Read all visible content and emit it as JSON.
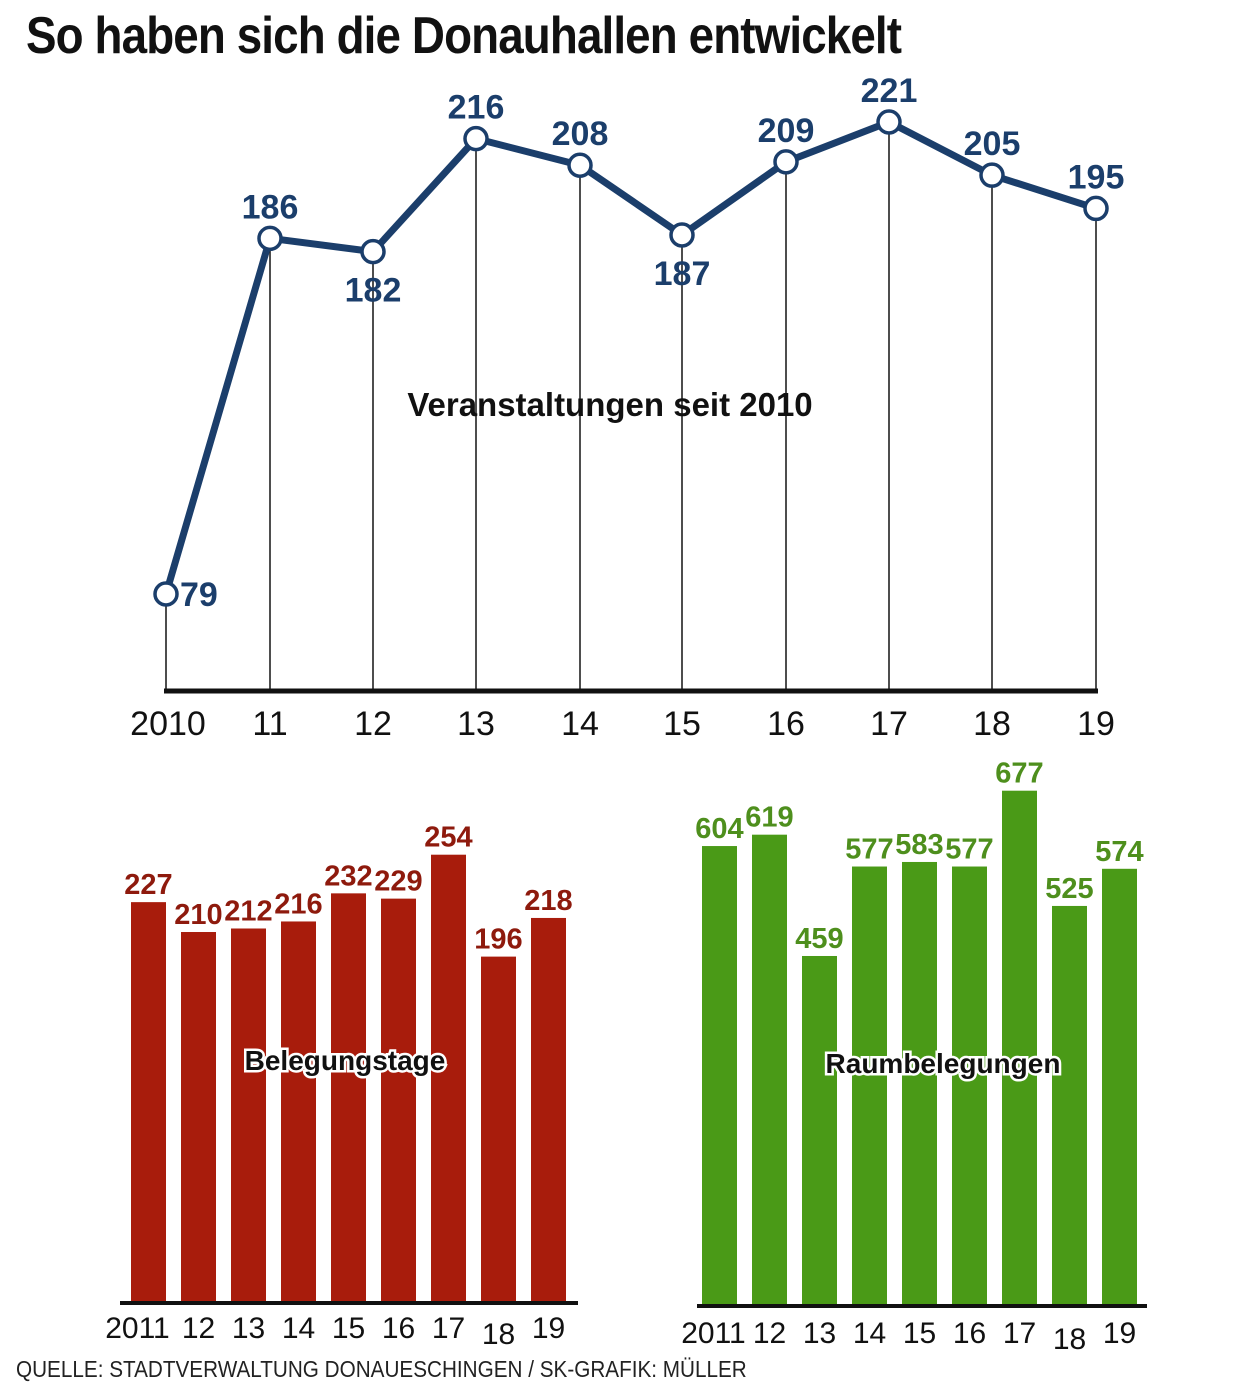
{
  "title": "So haben sich die Donauhallen entwickelt",
  "source": "QUELLE: STADTVERWALTUNG DONAUESCHINGEN / SK-GRAFIK: MÜLLER",
  "colors": {
    "line": "#1b3e6b",
    "bar_red": "#a81c0c",
    "label_red": "#8e1a0d",
    "bar_green": "#4a9a17",
    "label_green": "#4e8f1d",
    "axis": "#111111",
    "gridline": "#222222"
  },
  "chart_data": [
    {
      "type": "line",
      "title": "Veranstaltungen seit 2010",
      "x": [
        "2010",
        "11",
        "12",
        "13",
        "14",
        "15",
        "16",
        "17",
        "18",
        "19"
      ],
      "values": [
        79,
        186,
        182,
        216,
        208,
        187,
        209,
        221,
        205,
        195
      ],
      "data_labels": [
        "79",
        "186",
        "182",
        "216",
        "208",
        "187",
        "209",
        "221",
        "205",
        "195"
      ],
      "grid": "vertical drop lines",
      "legend": "none"
    },
    {
      "type": "bar",
      "title": "Belegungstage",
      "categories": [
        "2011",
        "12",
        "13",
        "14",
        "15",
        "16",
        "17",
        "18",
        "19"
      ],
      "values": [
        227,
        210,
        212,
        216,
        232,
        229,
        254,
        196,
        218
      ],
      "data_labels": [
        "227",
        "210",
        "212",
        "216",
        "232",
        "229",
        "254",
        "196",
        "218"
      ],
      "color": "#a81c0c"
    },
    {
      "type": "bar",
      "title": "Raumbelegungen",
      "categories": [
        "2011",
        "12",
        "13",
        "14",
        "15",
        "16",
        "17",
        "18",
        "19"
      ],
      "values": [
        604,
        619,
        459,
        577,
        583,
        577,
        677,
        525,
        574
      ],
      "data_labels": [
        "604",
        "619",
        "459",
        "577",
        "583",
        "577",
        "677",
        "525",
        "574"
      ],
      "color": "#4a9a17"
    }
  ]
}
